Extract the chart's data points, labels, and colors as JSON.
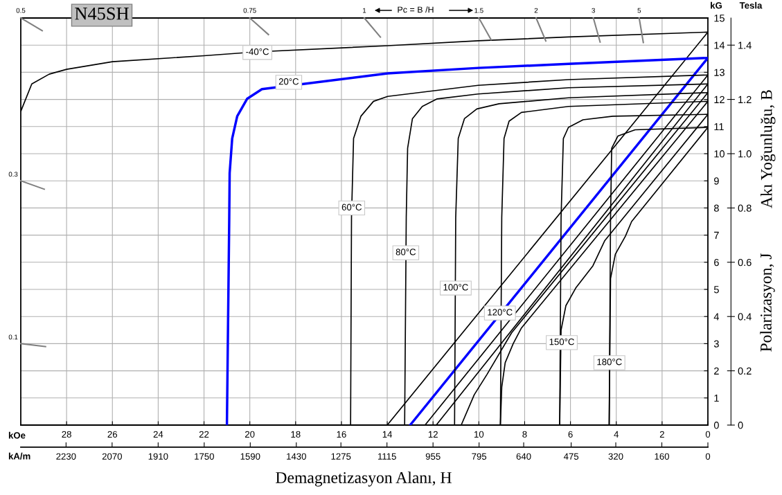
{
  "chart_data": {
    "type": "line",
    "title": "N45SH",
    "xlabel": "Demagnetizasyon Alanı, H",
    "y2label": "Akı Yoğunluğu, B",
    "xlim": [
      30,
      0
    ],
    "xticks": [
      28,
      26,
      24,
      22,
      20,
      18,
      16,
      14,
      12,
      10,
      8,
      6,
      4,
      2,
      0
    ],
    "x2lim": [
      2387.3,
      0
    ],
    "x2ticks": [
      2230,
      2070,
      1910,
      1750,
      1590,
      1430,
      1275,
      1115,
      955,
      795,
      640,
      475,
      320,
      160,
      0
    ],
    "ylim": [
      0,
      15
    ],
    "yticks": [
      0,
      1,
      2,
      3,
      4,
      5,
      6,
      7,
      8,
      9,
      10,
      11,
      12,
      13,
      14,
      15
    ],
    "y2lim": [
      0,
      1.5
    ],
    "y2ticks": [
      0,
      0.2,
      0.4,
      0.6,
      0.8,
      {
        "value": 1,
        "label": "1.0"
      },
      1.2,
      1.4
    ],
    "grid": true,
    "series": [
      {
        "color": "#000000",
        "x": [
          30,
          29.52,
          28.76,
          28.0,
          26.0,
          22.0,
          19.74,
          13.98,
          10.03,
          6.09,
          0
        ],
        "values": [
          11.56,
          12.57,
          12.93,
          13.11,
          13.39,
          13.61,
          13.75,
          13.98,
          14.16,
          14.3,
          14.48
        ]
      },
      {
        "color": "#000000",
        "x": [
          0,
          14.0
        ],
        "values": [
          14.48,
          0
        ]
      },
      {
        "color": "#0000ff",
        "x": [
          21.0,
          20.9,
          20.88,
          20.77,
          20.55,
          20.12,
          19.47,
          13.98,
          10.03,
          6.09,
          0
        ],
        "values": [
          0,
          7.5,
          9.29,
          10.56,
          11.38,
          12.02,
          12.38,
          12.96,
          13.16,
          13.31,
          13.53
        ]
      },
      {
        "color": "#0000ff",
        "x": [
          0,
          13.0
        ],
        "values": [
          13.53,
          0
        ]
      },
      {
        "color": "#000000",
        "x": [
          15.6,
          15.56,
          15.47,
          15.15,
          14.6,
          13.98,
          10.03,
          6.09,
          0
        ],
        "values": [
          0,
          7.65,
          10.56,
          11.38,
          11.93,
          12.11,
          12.52,
          12.73,
          12.9
        ]
      },
      {
        "color": "#000000",
        "x": [
          0,
          12.35
        ],
        "values": [
          12.9,
          0
        ]
      },
      {
        "color": "#000000",
        "x": [
          13.24,
          13.17,
          13.11,
          12.9,
          12.47,
          11.82,
          10.03,
          6.09,
          0
        ],
        "values": [
          0,
          7.65,
          10.2,
          11.29,
          11.74,
          12.02,
          12.2,
          12.43,
          12.57
        ]
      },
      {
        "color": "#000000",
        "x": [
          0,
          11.86
        ],
        "values": [
          12.57,
          0
        ]
      },
      {
        "color": "#000000",
        "x": [
          11.06,
          11.01,
          10.9,
          10.63,
          10.09,
          9.12,
          6.09,
          0
        ],
        "values": [
          0,
          7.65,
          10.56,
          11.29,
          11.65,
          11.84,
          12.06,
          12.25
        ]
      },
      {
        "color": "#000000",
        "x": [
          0,
          8.57,
          9.65,
          10.2,
          10.77
        ],
        "values": [
          12.25,
          3.4,
          1.86,
          1.12,
          0
        ]
      },
      {
        "color": "#000000",
        "x": [
          9.06,
          9.0,
          8.9,
          8.68,
          8.14,
          6.09,
          0
        ],
        "values": [
          0,
          7.65,
          10.56,
          11.2,
          11.52,
          11.74,
          11.93
        ]
      },
      {
        "color": "#000000",
        "x": [
          0,
          8.14,
          8.5,
          8.85,
          9.0,
          9.06
        ],
        "values": [
          11.93,
          3.58,
          3.0,
          2.3,
          1.4,
          0
        ]
      },
      {
        "color": "#000000",
        "x": [
          6.47,
          6.41,
          6.31,
          6.09,
          5.45,
          4.15,
          0
        ],
        "values": [
          0,
          7.65,
          10.56,
          10.97,
          11.25,
          11.38,
          11.45
        ]
      },
      {
        "color": "#000000",
        "x": [
          0,
          4.5,
          5.02,
          5.77,
          6.2,
          6.41,
          6.47
        ],
        "values": [
          11.45,
          6.8,
          5.87,
          5.05,
          4.4,
          3.5,
          0
        ]
      },
      {
        "color": "#000000",
        "x": [
          4.31,
          4.25,
          4.2,
          3.93,
          3.18,
          0
        ],
        "values": [
          0,
          7.65,
          10.2,
          10.65,
          10.88,
          10.97
        ]
      },
      {
        "color": "#000000",
        "x": [
          0,
          3.33,
          3.6,
          4.04,
          4.25,
          4.31
        ],
        "values": [
          10.97,
          7.5,
          6.96,
          6.3,
          5.4,
          0
        ]
      }
    ],
    "annotations": [
      {
        "text": "-40°C",
        "x": 19.67,
        "y": 13.73
      },
      {
        "text": "20°C",
        "x": 18.3,
        "y": 12.63
      },
      {
        "text": "60°C",
        "x": 15.55,
        "y": 8.0
      },
      {
        "text": "80°C",
        "x": 13.19,
        "y": 6.35
      },
      {
        "text": "100°C",
        "x": 11.01,
        "y": 5.05
      },
      {
        "text": "120°C",
        "x": 9.08,
        "y": 4.13
      },
      {
        "text": "150°C",
        "x": 6.38,
        "y": 3.04
      },
      {
        "text": "180°C",
        "x": 4.3,
        "y": 2.3
      },
      "Pc = B /H",
      "kOe",
      "kA/m",
      "kG",
      "Tesla",
      "Polarizasyon, J",
      "0.5",
      "0.75",
      "1",
      "1.5",
      "2",
      "3",
      "5",
      "0.3",
      "0.1"
    ]
  }
}
